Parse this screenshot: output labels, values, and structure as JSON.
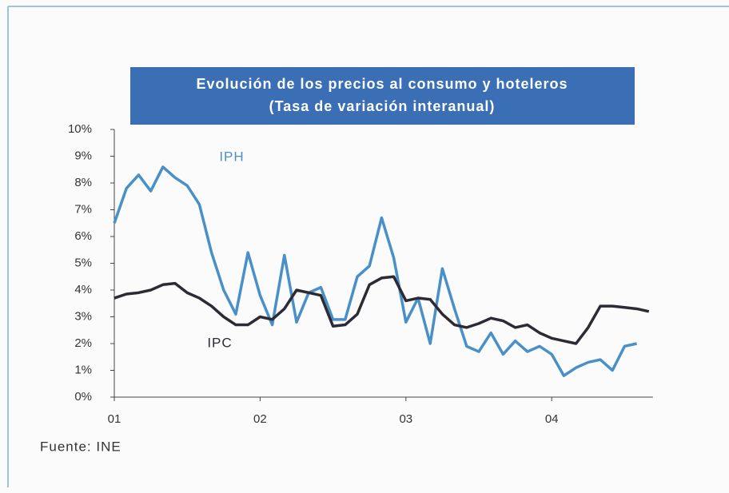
{
  "chart_data": {
    "type": "line",
    "title": "Evolución de los precios al consumo y hoteleros",
    "subtitle": "(Tasa de variación interanual)",
    "source": "Fuente: INE",
    "categories": [
      "01",
      null,
      null,
      null,
      null,
      null,
      null,
      null,
      null,
      null,
      null,
      null,
      "02",
      null,
      null,
      null,
      null,
      null,
      null,
      null,
      null,
      null,
      null,
      null,
      "03",
      null,
      null,
      null,
      null,
      null,
      null,
      null,
      null,
      null,
      null,
      null,
      "04",
      null,
      null,
      null,
      null,
      null,
      null,
      null,
      null
    ],
    "series": [
      {
        "name": "IPH",
        "color": "#4a90c8",
        "values": [
          6.5,
          7.8,
          8.3,
          7.7,
          8.6,
          8.2,
          7.9,
          7.2,
          5.4,
          4.0,
          3.1,
          5.4,
          3.8,
          2.7,
          5.3,
          2.8,
          3.9,
          4.1,
          2.9,
          2.9,
          4.5,
          4.9,
          6.7,
          5.2,
          2.8,
          3.7,
          2.0,
          4.8,
          3.3,
          1.9,
          1.7,
          2.4,
          1.6,
          2.1,
          1.7,
          1.9,
          1.6,
          0.8,
          1.1,
          1.3,
          1.4,
          1.0,
          1.9,
          2.0,
          null
        ]
      },
      {
        "name": "IPC",
        "color": "#2d2a33",
        "values": [
          3.7,
          3.85,
          3.9,
          4.0,
          4.2,
          4.25,
          3.9,
          3.7,
          3.4,
          3.0,
          2.7,
          2.7,
          3.0,
          2.9,
          3.3,
          4.0,
          3.9,
          3.8,
          2.65,
          2.7,
          3.1,
          4.2,
          4.45,
          4.5,
          3.6,
          3.7,
          3.65,
          3.1,
          2.7,
          2.6,
          2.75,
          2.95,
          2.85,
          2.6,
          2.7,
          2.4,
          2.2,
          2.1,
          2.0,
          2.6,
          3.4,
          3.4,
          3.35,
          3.3,
          3.2
        ]
      }
    ],
    "ylim": [
      0,
      10
    ],
    "yticks": [
      {
        "value": 0,
        "label": "0%"
      },
      {
        "value": 1,
        "label": "1%"
      },
      {
        "value": 2,
        "label": "2%"
      },
      {
        "value": 3,
        "label": "3%"
      },
      {
        "value": 4,
        "label": "4%"
      },
      {
        "value": 5,
        "label": "5%"
      },
      {
        "value": 6,
        "label": "6%"
      },
      {
        "value": 7,
        "label": "7%"
      },
      {
        "value": 8,
        "label": "8%"
      },
      {
        "value": 9,
        "label": "9%"
      },
      {
        "value": 10,
        "label": "10%"
      }
    ],
    "grid": false
  }
}
